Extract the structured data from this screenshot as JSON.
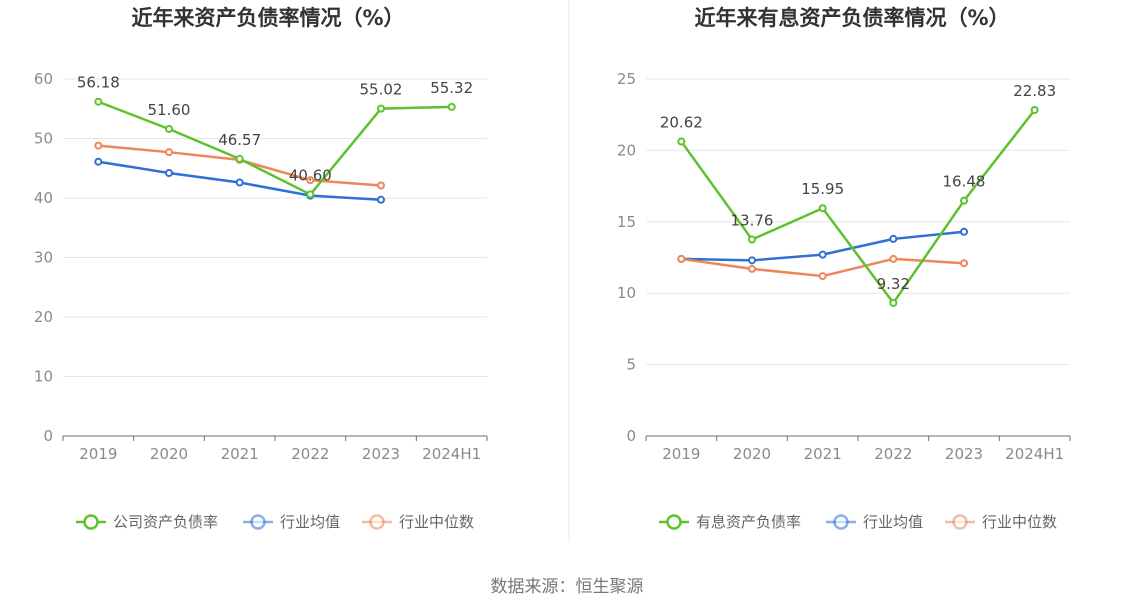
{
  "source": "数据来源：恒生聚源",
  "colors": {
    "company": "#5cc22d",
    "avg": "#2f6fd6",
    "median": "#ef8658"
  },
  "chart_data": [
    {
      "type": "line",
      "title": "近年来资产负债率情况（%）",
      "categories": [
        "2019",
        "2020",
        "2021",
        "2022",
        "2023",
        "2024H1"
      ],
      "y_ticks": [
        0,
        10,
        20,
        30,
        40,
        50,
        60
      ],
      "ylim": [
        0,
        60
      ],
      "grid": true,
      "legend_position": "bottom",
      "series": [
        {
          "name": "公司资产负债率",
          "key": "company",
          "values": [
            56.18,
            51.6,
            46.57,
            40.6,
            55.02,
            55.32
          ],
          "labels": [
            "56.18",
            "51.60",
            "46.57",
            "40.60",
            "55.02",
            "55.32"
          ]
        },
        {
          "name": "行业均值",
          "key": "avg",
          "values": [
            46.1,
            44.2,
            42.6,
            40.4,
            39.7,
            null
          ]
        },
        {
          "name": "行业中位数",
          "key": "median",
          "values": [
            48.8,
            47.7,
            46.4,
            43.0,
            42.1,
            null
          ]
        }
      ]
    },
    {
      "type": "line",
      "title": "近年来有息资产负债率情况（%）",
      "categories": [
        "2019",
        "2020",
        "2021",
        "2022",
        "2023",
        "2024H1"
      ],
      "y_ticks": [
        0,
        5,
        10,
        15,
        20,
        25
      ],
      "ylim": [
        0,
        25
      ],
      "grid": true,
      "legend_position": "bottom",
      "series": [
        {
          "name": "有息资产负债率",
          "key": "company",
          "values": [
            20.62,
            13.76,
            15.95,
            9.32,
            16.48,
            22.83
          ],
          "labels": [
            "20.62",
            "13.76",
            "15.95",
            "9.32",
            "16.48",
            "22.83"
          ]
        },
        {
          "name": "行业均值",
          "key": "avg",
          "values": [
            12.4,
            12.3,
            12.7,
            13.8,
            14.3,
            null
          ]
        },
        {
          "name": "行业中位数",
          "key": "median",
          "values": [
            12.4,
            11.7,
            11.2,
            12.4,
            12.1,
            null
          ]
        }
      ]
    }
  ]
}
